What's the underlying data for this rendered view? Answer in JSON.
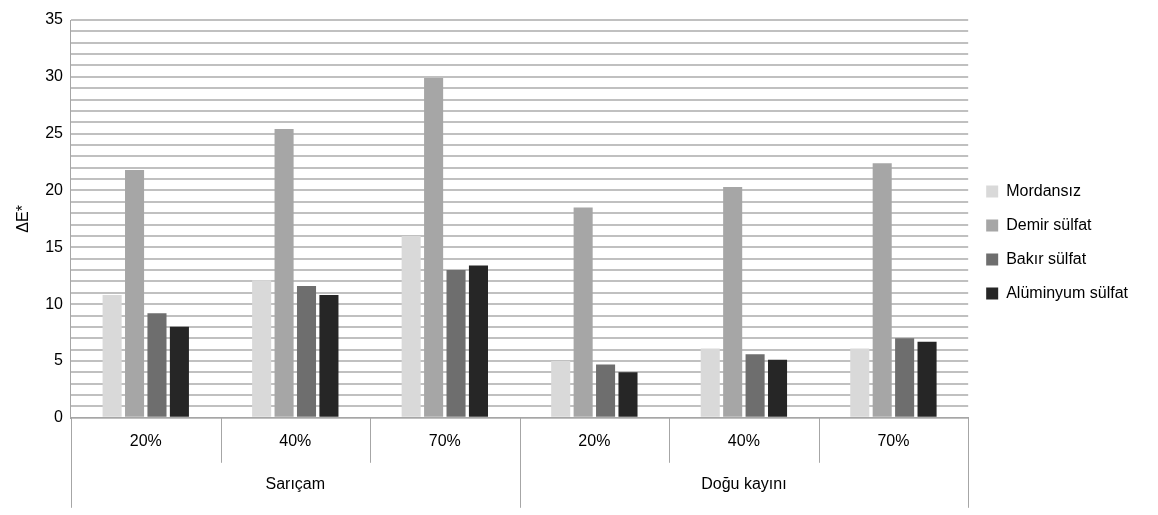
{
  "chart_data": {
    "type": "bar",
    "ylabel": "ΔE*",
    "categories": [
      "20%",
      "40%",
      "70%",
      "20%",
      "40%",
      "70%"
    ],
    "annotations": [
      "Sarıçam",
      "Doğu kayını"
    ],
    "series": [
      {
        "name": "Mordansız",
        "color": "#d9d9d9",
        "values": [
          10.8,
          12.1,
          16.0,
          5.0,
          6.1,
          6.1
        ]
      },
      {
        "name": "Demir sülfat",
        "color": "#a6a6a6",
        "values": [
          21.8,
          25.4,
          29.9,
          18.5,
          20.3,
          22.4
        ]
      },
      {
        "name": "Bakır sülfat",
        "color": "#6e6e6e",
        "values": [
          9.2,
          11.6,
          13.0,
          4.7,
          5.6,
          7.0
        ]
      },
      {
        "name": "Alüminyum sülfat",
        "color": "#262626",
        "values": [
          8.0,
          10.8,
          13.4,
          4.0,
          5.1,
          6.7
        ]
      }
    ],
    "ylim": [
      0,
      35
    ],
    "yticks": [
      0,
      {
        "value": 1,
        "label": null
      },
      {
        "value": 2,
        "label": null
      },
      {
        "value": 3,
        "label": null
      },
      {
        "value": 4,
        "label": null
      },
      5,
      {
        "value": 6,
        "label": null
      },
      {
        "value": 7,
        "label": null
      },
      {
        "value": 8,
        "label": null
      },
      {
        "value": 9,
        "label": null
      },
      10,
      {
        "value": 11,
        "label": null
      },
      {
        "value": 12,
        "label": null
      },
      {
        "value": 13,
        "label": null
      },
      {
        "value": 14,
        "label": null
      },
      15,
      {
        "value": 16,
        "label": null
      },
      {
        "value": 17,
        "label": null
      },
      {
        "value": 18,
        "label": null
      },
      {
        "value": 19,
        "label": null
      },
      20,
      {
        "value": 21,
        "label": null
      },
      {
        "value": 22,
        "label": null
      },
      {
        "value": 23,
        "label": null
      },
      {
        "value": 24,
        "label": null
      },
      25,
      {
        "value": 26,
        "label": null
      },
      {
        "value": 27,
        "label": null
      },
      {
        "value": 28,
        "label": null
      },
      {
        "value": 29,
        "label": null
      },
      30,
      {
        "value": 31,
        "label": null
      },
      {
        "value": 32,
        "label": null
      },
      {
        "value": 33,
        "label": null
      },
      {
        "value": 34,
        "label": null
      },
      35
    ],
    "grid": "y",
    "legend": "right"
  }
}
